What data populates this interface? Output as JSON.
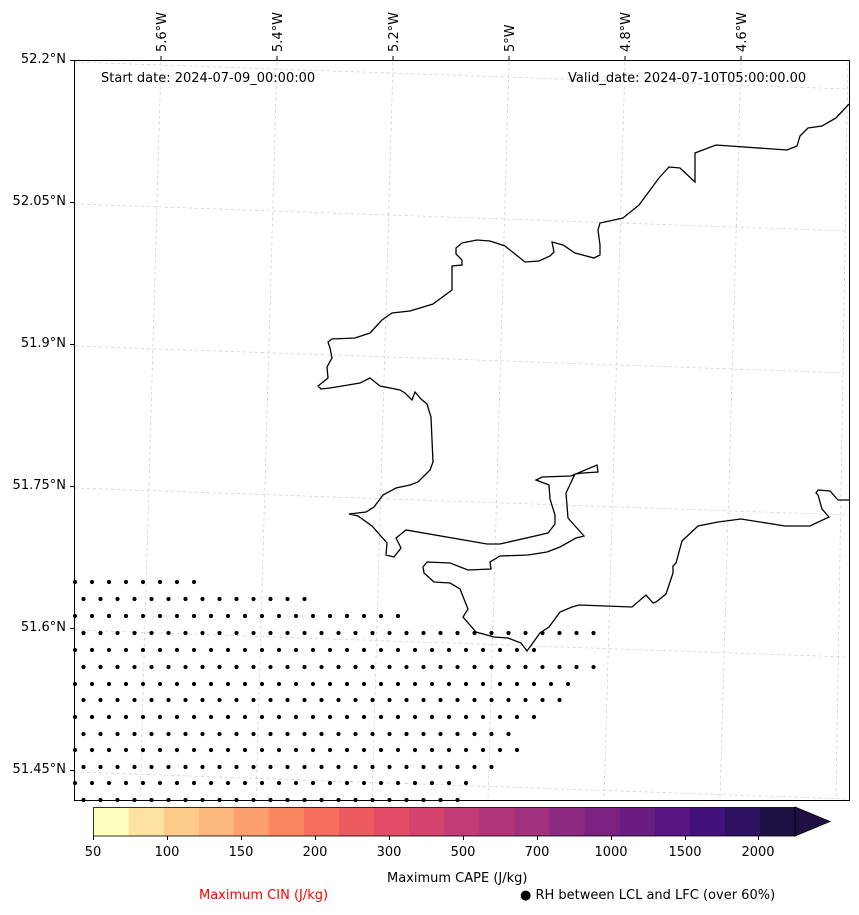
{
  "map": {
    "start_date": "Start date: 2024-07-09_00:00:00",
    "valid_date": "Valid_date: 2024-07-10T05:00:00.00",
    "lat_labels": [
      "52.2°N",
      "52.05°N",
      "51.9°N",
      "51.75°N",
      "51.6°N",
      "51.45°N"
    ],
    "lon_labels": [
      "5.6°W",
      "5.4°W",
      "5.2°W",
      "5°W",
      "4.8°W",
      "4.6°W"
    ],
    "coastline_color": "#000000",
    "gridline_color": "#cccccc",
    "stipple_color": "#000000"
  },
  "colorbar": {
    "tick_labels": [
      "50",
      "100",
      "150",
      "200",
      "300",
      "500",
      "700",
      "1000",
      "1500",
      "2000"
    ],
    "colors": [
      "#fefebd",
      "#fee3a0",
      "#fdcc8a",
      "#fdb97d",
      "#fc9f6e",
      "#fb8761",
      "#f76e5c",
      "#eb5b60",
      "#e24d66",
      "#d3436e",
      "#c23b75",
      "#b1357b",
      "#a1307e",
      "#8d2a81",
      "#7c2382",
      "#6a1c81",
      "#581581",
      "#43117a",
      "#2d1160",
      "#1e1043"
    ],
    "extend_color": "#1e1043",
    "label": "Maximum CAPE (J/kg)"
  },
  "legend": {
    "cin_label": "Maximum CIN (J/kg)",
    "cin_color": "#ff0000",
    "rh_label": "● RH between LCL and LFC (over 60%)"
  }
}
